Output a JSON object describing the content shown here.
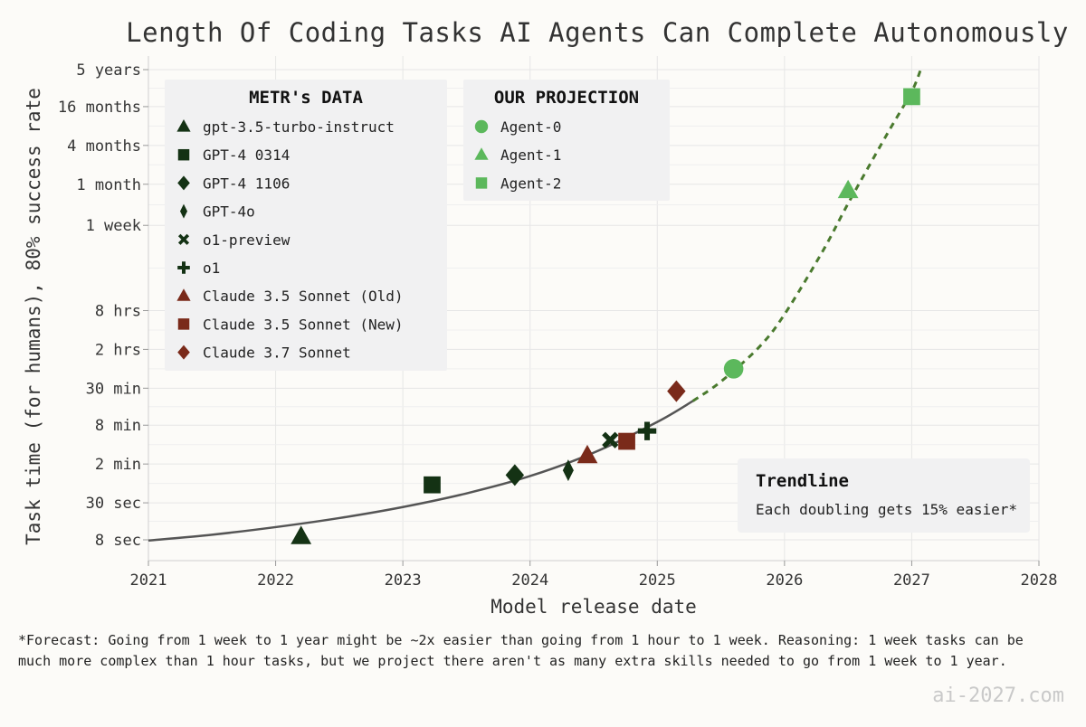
{
  "chart_data": {
    "type": "scatter",
    "title": "Length Of Coding Tasks AI Agents Can Complete Autonomously",
    "xlabel": "Model release date",
    "ylabel": "Task time (for humans), 80% success rate",
    "xlim": [
      2021,
      2028
    ],
    "x_ticks": [
      "2021",
      "2022",
      "2023",
      "2024",
      "2025",
      "2026",
      "2027",
      "2028"
    ],
    "ylim_minutes": [
      0.1,
      3000000
    ],
    "y_ticks": [
      {
        "label": "5 years",
        "minutes": 2628000
      },
      {
        "label": "16 months",
        "minutes": 700800
      },
      {
        "label": "4 months",
        "minutes": 175200
      },
      {
        "label": "1 month",
        "minutes": 43800
      },
      {
        "label": "1 week",
        "minutes": 10080
      },
      {
        "label": "8 hrs",
        "minutes": 480
      },
      {
        "label": "2 hrs",
        "minutes": 120
      },
      {
        "label": "30 min",
        "minutes": 30
      },
      {
        "label": "8 min",
        "minutes": 8
      },
      {
        "label": "2 min",
        "minutes": 2
      },
      {
        "label": "30 sec",
        "minutes": 0.5
      },
      {
        "label": "8 sec",
        "minutes": 0.1333
      }
    ],
    "metr_legend_title": "METR's DATA",
    "projection_legend_title": "OUR PROJECTION",
    "metr_series": [
      {
        "name": "gpt-3.5-turbo-instruct",
        "x": 2022.2,
        "y_minutes": 0.15,
        "marker": "triangle",
        "color": "#143214"
      },
      {
        "name": "GPT-4 0314",
        "x": 2023.23,
        "y_minutes": 0.95,
        "marker": "square",
        "color": "#143214"
      },
      {
        "name": "GPT-4 1106",
        "x": 2023.88,
        "y_minutes": 1.35,
        "marker": "diamond",
        "color": "#143214"
      },
      {
        "name": "GPT-4o",
        "x": 2024.3,
        "y_minutes": 1.6,
        "marker": "thin_diamond",
        "color": "#143214"
      },
      {
        "name": "o1-preview",
        "x": 2024.63,
        "y_minutes": 4.7,
        "marker": "x",
        "color": "#143214"
      },
      {
        "name": "o1",
        "x": 2024.92,
        "y_minutes": 6.5,
        "marker": "plus",
        "color": "#143214"
      },
      {
        "name": "Claude 3.5 Sonnet (Old)",
        "x": 2024.45,
        "y_minutes": 2.7,
        "marker": "triangle",
        "color": "#7a2a1a"
      },
      {
        "name": "Claude 3.5 Sonnet (New)",
        "x": 2024.76,
        "y_minutes": 4.5,
        "marker": "square",
        "color": "#7a2a1a"
      },
      {
        "name": "Claude 3.7 Sonnet",
        "x": 2025.15,
        "y_minutes": 27,
        "marker": "diamond",
        "color": "#7a2a1a"
      }
    ],
    "projection_series": [
      {
        "name": "Agent-0",
        "x": 2025.6,
        "y_minutes": 60,
        "marker": "circle",
        "color": "#5cb85c"
      },
      {
        "name": "Agent-1",
        "x": 2026.5,
        "y_minutes": 35000,
        "marker": "triangle",
        "color": "#5cb85c"
      },
      {
        "name": "Agent-2",
        "x": 2027.0,
        "y_minutes": 1000000,
        "marker": "square",
        "color": "#5cb85c"
      }
    ],
    "trendline": {
      "solid_color": "#555555",
      "dashed_color": "#4a7a2e",
      "split_x": 2025.28,
      "points": [
        [
          2021.0,
          0.13
        ],
        [
          2021.5,
          0.16
        ],
        [
          2022.0,
          0.21
        ],
        [
          2022.5,
          0.29
        ],
        [
          2023.0,
          0.43
        ],
        [
          2023.5,
          0.7
        ],
        [
          2024.0,
          1.3
        ],
        [
          2024.5,
          3.0
        ],
        [
          2025.0,
          9.0
        ],
        [
          2025.28,
          19
        ],
        [
          2025.5,
          38
        ],
        [
          2025.8,
          130
        ],
        [
          2026.0,
          420
        ],
        [
          2026.3,
          4000
        ],
        [
          2026.5,
          22000
        ],
        [
          2026.8,
          250000
        ],
        [
          2027.0,
          1200000
        ],
        [
          2027.08,
          3000000
        ]
      ]
    },
    "annotation_title": "Trendline",
    "annotation_text": "Each doubling gets 15% easier*",
    "grid": true
  },
  "colors": {
    "metr_dark": "#143214",
    "claude": "#7a2a1a",
    "projection": "#5cb85c",
    "background": "#fcfbf8",
    "legend_bg": "#f1f1f2"
  },
  "footnote": [
    "*Forecast: Going from 1 week to 1 year might be ~2x easier than going from 1 hour to 1 week. Reasoning: 1 week tasks can be",
    "much more complex than 1 hour tasks, but we project there aren't as many extra skills needed to go from 1 week to 1 year."
  ],
  "watermark": "ai-2027.com"
}
